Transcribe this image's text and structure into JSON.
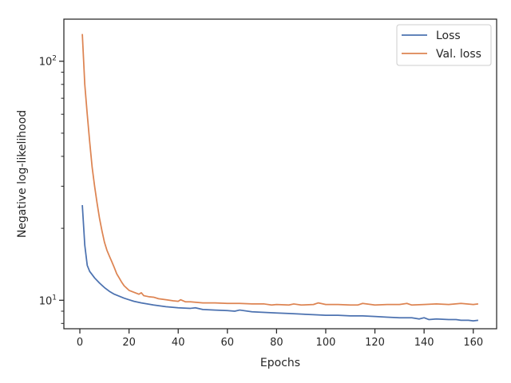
{
  "chart_data": {
    "type": "line",
    "title": "",
    "xlabel": "Epochs",
    "ylabel": "Negative log-likelihood",
    "yscale": "log",
    "xlim": [
      -6.5,
      169.5
    ],
    "ylim": [
      7.6,
      150
    ],
    "x_ticks": [
      0,
      20,
      40,
      60,
      80,
      100,
      120,
      140,
      160
    ],
    "x_tick_labels": [
      "0",
      "20",
      "40",
      "60",
      "80",
      "100",
      "120",
      "140",
      "160"
    ],
    "y_major_ticks": [
      10,
      100
    ],
    "y_major_tick_labels": [
      {
        "base": "10",
        "exp": "1"
      },
      {
        "base": "10",
        "exp": "2"
      }
    ],
    "y_minor_ticks": [
      8,
      9,
      20,
      30,
      40,
      50,
      60,
      70,
      80,
      90
    ],
    "grid": false,
    "legend_position": "upper right",
    "series": [
      {
        "name": "Loss",
        "color": "#4c72b0",
        "points": [
          [
            1,
            25.0
          ],
          [
            2,
            17.0
          ],
          [
            3,
            14.0
          ],
          [
            4,
            13.2
          ],
          [
            5,
            12.8
          ],
          [
            6,
            12.4
          ],
          [
            8,
            11.8
          ],
          [
            10,
            11.3
          ],
          [
            12,
            10.9
          ],
          [
            14,
            10.6
          ],
          [
            16,
            10.4
          ],
          [
            18,
            10.2
          ],
          [
            20,
            10.05
          ],
          [
            22,
            9.9
          ],
          [
            25,
            9.75
          ],
          [
            30,
            9.55
          ],
          [
            35,
            9.4
          ],
          [
            40,
            9.3
          ],
          [
            45,
            9.25
          ],
          [
            47,
            9.3
          ],
          [
            50,
            9.15
          ],
          [
            55,
            9.1
          ],
          [
            60,
            9.05
          ],
          [
            63,
            9.0
          ],
          [
            65,
            9.1
          ],
          [
            70,
            8.95
          ],
          [
            75,
            8.9
          ],
          [
            80,
            8.85
          ],
          [
            85,
            8.8
          ],
          [
            90,
            8.75
          ],
          [
            95,
            8.7
          ],
          [
            100,
            8.65
          ],
          [
            105,
            8.65
          ],
          [
            110,
            8.6
          ],
          [
            115,
            8.6
          ],
          [
            120,
            8.55
          ],
          [
            125,
            8.5
          ],
          [
            130,
            8.45
          ],
          [
            135,
            8.45
          ],
          [
            138,
            8.35
          ],
          [
            140,
            8.45
          ],
          [
            142,
            8.3
          ],
          [
            145,
            8.35
          ],
          [
            150,
            8.3
          ],
          [
            153,
            8.3
          ],
          [
            155,
            8.25
          ],
          [
            158,
            8.25
          ],
          [
            160,
            8.2
          ],
          [
            162,
            8.25
          ]
        ]
      },
      {
        "name": "Val. loss",
        "color": "#dd8452",
        "points": [
          [
            1,
            130.0
          ],
          [
            2,
            80.0
          ],
          [
            3,
            60.0
          ],
          [
            4,
            46.0
          ],
          [
            5,
            36.0
          ],
          [
            6,
            30.0
          ],
          [
            7,
            25.5
          ],
          [
            8,
            22.0
          ],
          [
            9,
            19.5
          ],
          [
            10,
            17.5
          ],
          [
            11,
            16.2
          ],
          [
            12,
            15.3
          ],
          [
            13,
            14.5
          ],
          [
            14,
            13.7
          ],
          [
            15,
            12.9
          ],
          [
            16,
            12.4
          ],
          [
            17,
            11.9
          ],
          [
            18,
            11.5
          ],
          [
            20,
            11.0
          ],
          [
            22,
            10.8
          ],
          [
            24,
            10.6
          ],
          [
            25,
            10.75
          ],
          [
            26,
            10.45
          ],
          [
            28,
            10.35
          ],
          [
            30,
            10.3
          ],
          [
            32,
            10.15
          ],
          [
            35,
            10.05
          ],
          [
            38,
            9.95
          ],
          [
            40,
            9.9
          ],
          [
            41,
            10.05
          ],
          [
            43,
            9.85
          ],
          [
            45,
            9.85
          ],
          [
            50,
            9.75
          ],
          [
            55,
            9.75
          ],
          [
            60,
            9.7
          ],
          [
            65,
            9.7
          ],
          [
            70,
            9.65
          ],
          [
            75,
            9.65
          ],
          [
            78,
            9.55
          ],
          [
            80,
            9.6
          ],
          [
            85,
            9.55
          ],
          [
            87,
            9.65
          ],
          [
            90,
            9.55
          ],
          [
            95,
            9.6
          ],
          [
            97,
            9.75
          ],
          [
            100,
            9.6
          ],
          [
            105,
            9.6
          ],
          [
            110,
            9.55
          ],
          [
            113,
            9.55
          ],
          [
            115,
            9.7
          ],
          [
            120,
            9.55
          ],
          [
            125,
            9.6
          ],
          [
            130,
            9.6
          ],
          [
            133,
            9.7
          ],
          [
            135,
            9.55
          ],
          [
            140,
            9.6
          ],
          [
            145,
            9.65
          ],
          [
            150,
            9.6
          ],
          [
            155,
            9.7
          ],
          [
            160,
            9.6
          ],
          [
            162,
            9.65
          ]
        ]
      }
    ]
  }
}
